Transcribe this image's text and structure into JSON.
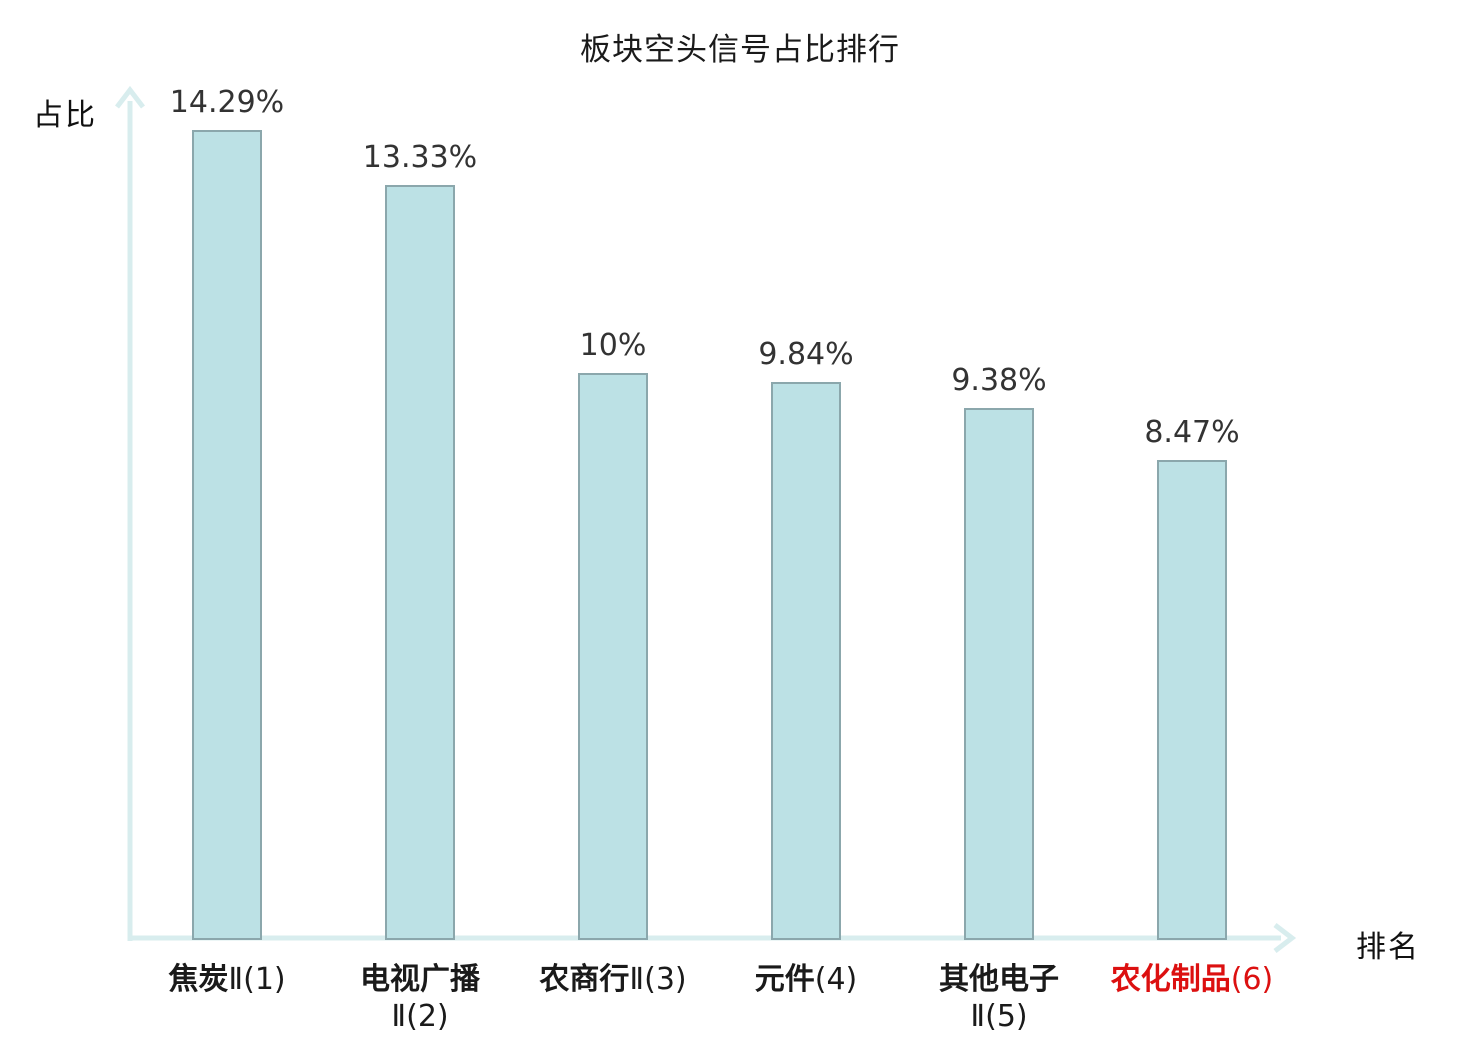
{
  "page": {
    "background": "#ffffff"
  },
  "chart_data": {
    "type": "bar",
    "title": "板块空头信号占比排行",
    "xlabel": "排名",
    "ylabel": "占比",
    "ylim": [
      0,
      15
    ],
    "grid": false,
    "legend": null,
    "categories": [
      "焦炭Ⅱ(1)",
      "电视广播Ⅱ(2)",
      "农商行Ⅱ(3)",
      "元件(4)",
      "其他电子Ⅱ(5)",
      "农化制品(6)"
    ],
    "values": [
      14.29,
      13.33,
      10,
      9.84,
      9.38,
      8.47
    ],
    "value_labels": [
      "14.29%",
      "13.33%",
      "10%",
      "9.84%",
      "9.38%",
      "8.47%"
    ],
    "highlight_index": 5,
    "bars": [
      {
        "rank": 1,
        "name": "焦炭",
        "suffix": "Ⅱ(1)",
        "wrap": false,
        "value": 14.29,
        "value_label": "14.29%",
        "highlight": false
      },
      {
        "rank": 2,
        "name": "电视广播",
        "suffix": "Ⅱ(2)",
        "wrap": true,
        "value": 13.33,
        "value_label": "13.33%",
        "highlight": false
      },
      {
        "rank": 3,
        "name": "农商行",
        "suffix": "Ⅱ(3)",
        "wrap": false,
        "value": 10,
        "value_label": "10%",
        "highlight": false
      },
      {
        "rank": 4,
        "name": "元件",
        "suffix": "(4)",
        "wrap": false,
        "value": 9.84,
        "value_label": "9.84%",
        "highlight": false
      },
      {
        "rank": 5,
        "name": "其他电子",
        "suffix": "Ⅱ(5)",
        "wrap": true,
        "value": 9.38,
        "value_label": "9.38%",
        "highlight": false
      },
      {
        "rank": 6,
        "name": "农化制品",
        "suffix": "(6)",
        "wrap": false,
        "value": 8.47,
        "value_label": "8.47%",
        "highlight": true
      }
    ],
    "colors": {
      "bar_fill": "#bce1e5",
      "bar_border": "#8ba7ac",
      "axis": "#d8edee",
      "title_text": "#1a1a1a",
      "value_text": "#333333",
      "category_text": "#1a1a1a",
      "highlight_text": "#dc1010"
    }
  }
}
